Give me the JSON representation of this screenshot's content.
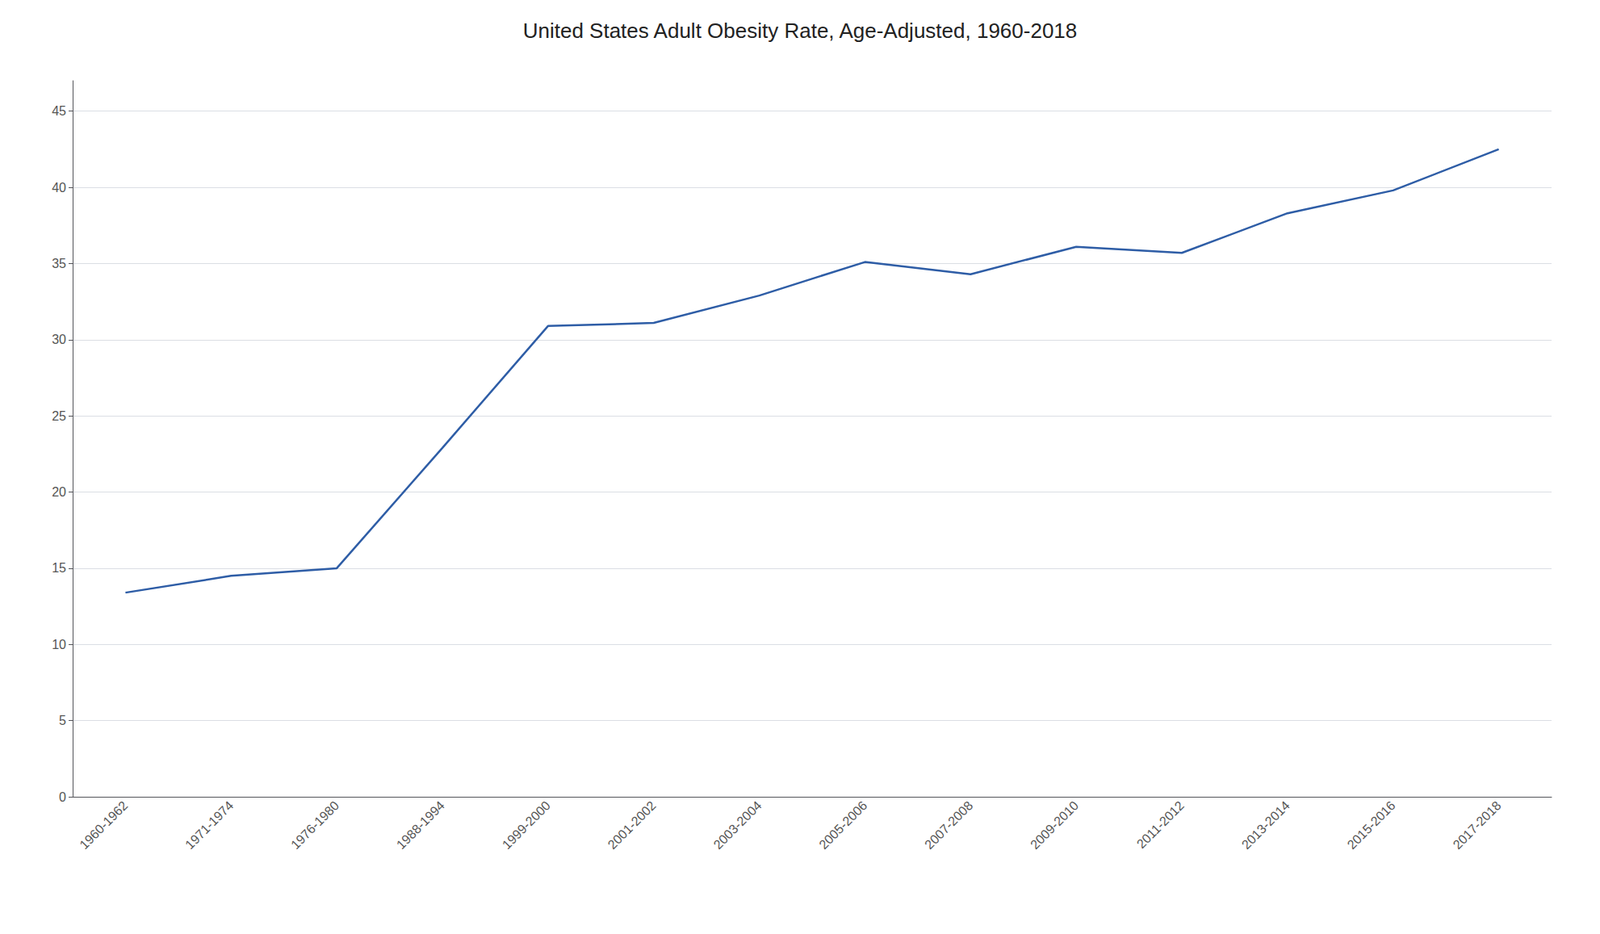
{
  "chart_data": {
    "type": "line",
    "title": "United States Adult Obesity Rate, Age-Adjusted, 1960-2018",
    "categories": [
      "1960-1962",
      "1971-1974",
      "1976-1980",
      "1988-1994",
      "1999-2000",
      "2001-2002",
      "2003-2004",
      "2005-2006",
      "2007-2008",
      "2009-2010",
      "2011-2012",
      "2013-2014",
      "2015-2016",
      "2017-2018"
    ],
    "values": [
      13.4,
      14.5,
      15.0,
      22.9,
      30.9,
      31.1,
      32.9,
      35.1,
      34.3,
      36.1,
      35.7,
      38.3,
      39.8,
      42.5
    ],
    "color": "#2E5DA6",
    "ylim": [
      0,
      47
    ],
    "yticks": [
      0,
      5,
      10,
      15,
      20,
      25,
      30,
      35,
      40,
      45
    ],
    "grid": true
  }
}
